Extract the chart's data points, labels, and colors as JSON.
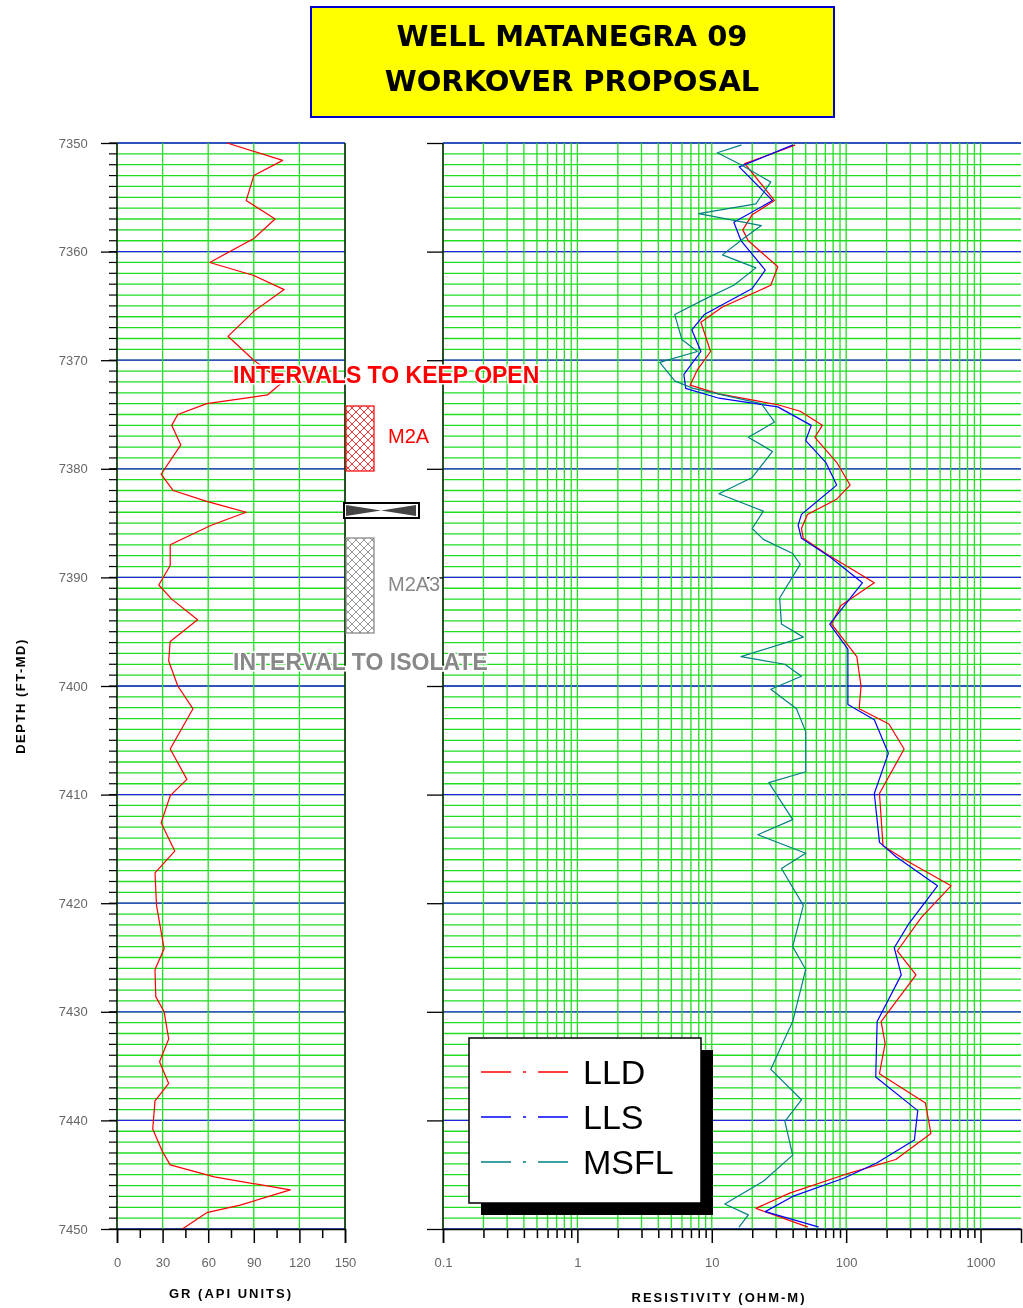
{
  "chart_data": [
    {
      "type": "line",
      "xlabel": "GR (API UNITS)",
      "ylabel": "DEPTH (FT-MD)",
      "xlim": [
        0,
        150
      ],
      "xticks": [
        0,
        {
          "value": 15,
          "label": null
        },
        30,
        {
          "value": 45,
          "label": null
        },
        60,
        {
          "value": 75,
          "label": null
        },
        90,
        {
          "value": 105,
          "label": null
        },
        120,
        {
          "value": 135,
          "label": null
        },
        150
      ],
      "ylim": [
        7450,
        7350
      ],
      "yticks": [
        7350,
        7360,
        7370,
        7380,
        7390,
        7400,
        7410,
        7420,
        7430,
        7440,
        7450
      ],
      "grid": true,
      "series": [
        {
          "color": "#ff0000",
          "x": [
            72.5,
            109,
            90,
            85,
            104,
            90,
            61,
            90,
            110,
            90,
            73,
            90,
            109,
            99,
            59,
            40,
            36,
            42,
            29,
            37,
            59,
            85,
            62,
            35,
            35,
            27.5,
            36,
            53,
            35,
            34,
            40,
            50,
            35,
            46,
            35,
            29,
            38,
            25,
            26,
            31,
            25,
            25.5,
            31,
            34,
            28,
            34,
            25,
            23.5,
            30,
            35,
            64,
            114,
            81,
            59,
            43
          ],
          "values": [
            7350,
            7351.6,
            7353,
            7355.3,
            7357,
            7358.8,
            7361,
            7362.2,
            7363.5,
            7365.5,
            7367.8,
            7370,
            7372,
            7373.2,
            7374,
            7375,
            7376,
            7377.8,
            7380.5,
            7382,
            7383,
            7384,
            7385.2,
            7387,
            7388.9,
            7390.7,
            7392,
            7393.9,
            7395.9,
            7397.7,
            7400,
            7402.1,
            7405.8,
            7408.6,
            7410.1,
            7412.6,
            7415.2,
            7417.2,
            7420.2,
            7424.2,
            7426.1,
            7428.6,
            7430,
            7432.5,
            7434.6,
            7436.6,
            7438.2,
            7440.8,
            7442.9,
            7444.1,
            7445.2,
            7446.4,
            7447.8,
            7448.5,
            7450
          ]
        }
      ],
      "annotations": [
        "INTERVALS TO KEEP OPEN",
        "M2A",
        "M2A3",
        "INTERVAL TO ISOLATE"
      ]
    },
    {
      "type": "line",
      "title": "WELL MATANEGRA 09",
      "subtitle": "WORKOVER PROPOSAL",
      "xlabel": "RESISTIVITY (OHM-M)",
      "log": "x",
      "xlim": [
        0.1,
        2000
      ],
      "xticks": [
        {
          "value": 0.1,
          "label": "0.1"
        },
        {
          "value": 0.2,
          "label": null
        },
        {
          "value": 0.3,
          "label": null
        },
        {
          "value": 0.4,
          "label": null
        },
        {
          "value": 0.5,
          "label": null
        },
        {
          "value": 0.6,
          "label": null
        },
        {
          "value": 0.7,
          "label": null
        },
        {
          "value": 0.8,
          "label": null
        },
        {
          "value": 0.9,
          "label": null
        },
        1,
        {
          "value": 2,
          "label": null
        },
        {
          "value": 3,
          "label": null
        },
        {
          "value": 4,
          "label": null
        },
        {
          "value": 5,
          "label": null
        },
        {
          "value": 6,
          "label": null
        },
        {
          "value": 7,
          "label": null
        },
        {
          "value": 8,
          "label": null
        },
        {
          "value": 9,
          "label": null
        },
        10,
        {
          "value": 20,
          "label": null
        },
        {
          "value": 30,
          "label": null
        },
        {
          "value": 40,
          "label": null
        },
        {
          "value": 50,
          "label": null
        },
        {
          "value": 60,
          "label": null
        },
        {
          "value": 70,
          "label": null
        },
        {
          "value": 80,
          "label": null
        },
        {
          "value": 90,
          "label": null
        },
        100,
        {
          "value": 200,
          "label": null
        },
        {
          "value": 300,
          "label": null
        },
        {
          "value": 400,
          "label": null
        },
        {
          "value": 500,
          "label": null
        },
        {
          "value": 600,
          "label": null
        },
        {
          "value": 700,
          "label": null
        },
        {
          "value": 800,
          "label": null
        },
        {
          "value": 900,
          "label": null
        },
        1000
      ],
      "ylim": [
        7450,
        7350
      ],
      "yticks": [
        7350,
        7360,
        7370,
        7380,
        7390,
        7400,
        7410,
        7420,
        7430,
        7440,
        7450
      ],
      "tick_labels": "x",
      "grid": true,
      "legend": "bottom left",
      "series": [
        {
          "name": "LLD",
          "color": "#ff0000",
          "x": [
            41.5,
            17.6,
            29.3,
            20,
            17,
            18.7,
            31,
            27.5,
            12,
            8.3,
            9.8,
            7.8,
            6.9,
            11.3,
            31,
            45.5,
            66.5,
            58.5,
            85,
            107,
            85,
            51.5,
            46.5,
            48,
            70.5,
            162,
            91,
            78,
            120,
            129,
            125,
            208,
            270,
            177,
            188,
            282,
            603,
            363,
            240,
            331,
            182,
            195,
            177,
            389,
            427,
            234,
            97,
            38,
            21.3,
            51.5
          ],
          "values": [
            7350.2,
            7351.9,
            7355.3,
            7356.6,
            7358,
            7359,
            7361.4,
            7363.1,
            7365.1,
            7366.5,
            7369.2,
            7370.9,
            7372.3,
            7373.1,
            7374.1,
            7374.7,
            7376,
            7377.1,
            7379.4,
            7381.5,
            7382.8,
            7384.2,
            7385.5,
            7386.4,
            7387.8,
            7390.5,
            7392.6,
            7394.3,
            7397.3,
            7400,
            7402.1,
            7403.5,
            7405.8,
            7409.9,
            7414.7,
            7416.1,
            7418.4,
            7421.3,
            7424.4,
            7426.6,
            7430.9,
            7432.9,
            7435.7,
            7438.4,
            7441.2,
            7443.6,
            7445,
            7446.7,
            7448.1,
            7449.8
          ]
        },
        {
          "name": "LLS",
          "color": "#0000ff",
          "x": [
            39.9,
            16,
            28.3,
            14.6,
            16.5,
            25,
            20,
            8.8,
            7.1,
            8.3,
            6.2,
            6.4,
            11.3,
            31,
            55,
            50,
            70.5,
            85,
            46.5,
            43.9,
            46.5,
            75.5,
            132,
            75.5,
            103,
            103,
            162,
            206,
            162,
            177,
            234,
            478,
            292,
            228,
            257,
            170,
            166,
            341,
            322,
            170,
            97,
            40,
            25,
            62
          ],
          "values": [
            7350.2,
            7352.2,
            7355.3,
            7357.3,
            7359,
            7361.7,
            7363.4,
            7365.8,
            7367.2,
            7369.2,
            7371.3,
            7372.6,
            7373.5,
            7374.3,
            7376,
            7377.4,
            7379.4,
            7381.5,
            7384.2,
            7385.2,
            7386.4,
            7388.1,
            7390.5,
            7394.3,
            7396.6,
            7401.7,
            7403.1,
            7406.2,
            7409.9,
            7414.4,
            7415.7,
            7418.4,
            7421.9,
            7424.1,
            7426.6,
            7430.9,
            7436,
            7439.1,
            7441.8,
            7443.9,
            7445.3,
            7447,
            7448.4,
            7449.8
          ]
        },
        {
          "name": "MSFL",
          "color": "#008080",
          "x": [
            16.5,
            11,
            16.5,
            27.5,
            21.3,
            8,
            23.4,
            17.6,
            12,
            21.3,
            14.6,
            8.8,
            5.3,
            6,
            7.8,
            4.1,
            5.3,
            7.3,
            23.4,
            29.3,
            18.7,
            28.3,
            20,
            11.3,
            24.2,
            20,
            24.2,
            40,
            45.5,
            32,
            33,
            48,
            16.5,
            35,
            46.5,
            27.5,
            42.7,
            50,
            50,
            26.6,
            40,
            22,
            50,
            33,
            48,
            40,
            50,
            40,
            27.5,
            46.5,
            35,
            40,
            24.2,
            12.5,
            18.7,
            16
          ],
          "values": [
            7350.2,
            7350.9,
            7352,
            7353.6,
            7355.6,
            7356.5,
            7357.6,
            7358.7,
            7360.3,
            7361.5,
            7363.1,
            7364.4,
            7365.8,
            7368.1,
            7369.2,
            7370.2,
            7371.9,
            7372.6,
            7374,
            7375.7,
            7377.1,
            7378.4,
            7380.8,
            7382.3,
            7383.9,
            7385.5,
            7386.5,
            7387.8,
            7388.8,
            7391.9,
            7394.3,
            7395.5,
            7397.3,
            7398,
            7399.1,
            7400.3,
            7402.1,
            7404.2,
            7407.9,
            7408.9,
            7412.3,
            7413.7,
            7415.4,
            7416.8,
            7420.2,
            7424,
            7426.1,
            7430.9,
            7435.3,
            7438.1,
            7440.1,
            7443.2,
            7445.6,
            7447.7,
            7448.7,
            7449.8
          ]
        }
      ]
    }
  ]
}
